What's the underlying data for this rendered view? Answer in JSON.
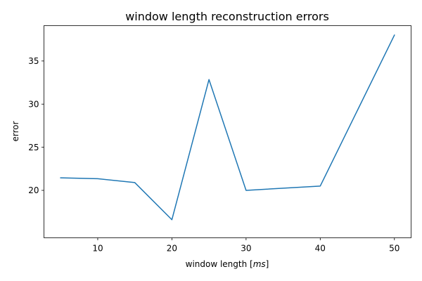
{
  "chart_data": {
    "type": "line",
    "title": "window length reconstruction errors",
    "xlabel": "window length [",
    "xlabel_unit": "ms",
    "xlabel_suffix": "]",
    "ylabel": "error",
    "xlim": [
      2.75,
      52.25
    ],
    "ylim": [
      14.5,
      39.1
    ],
    "xticks": [
      10,
      20,
      30,
      40,
      50
    ],
    "yticks": [
      20,
      25,
      30,
      35
    ],
    "grid": false,
    "series": [
      {
        "color": "#1f77b4",
        "x": [
          5,
          10,
          15,
          20,
          25,
          30,
          40,
          50
        ],
        "y": [
          21.45,
          21.35,
          20.9,
          16.6,
          32.85,
          20.0,
          20.5,
          38.0
        ]
      }
    ]
  }
}
